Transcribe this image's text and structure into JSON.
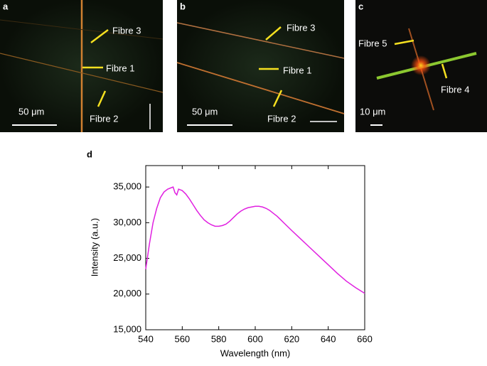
{
  "panels": [
    {
      "label": "a",
      "annotations": [
        "Fibre 3",
        "Fibre 1",
        "Fibre 2"
      ],
      "scale_bar": "50 μm"
    },
    {
      "label": "b",
      "annotations": [
        "Fibre 3",
        "Fibre 1",
        "Fibre 2"
      ],
      "scale_bar": "50 μm"
    },
    {
      "label": "c",
      "annotations": [
        "Fibre 5",
        "Fibre 4"
      ],
      "scale_bar": "10 μm"
    }
  ],
  "chart_data": {
    "type": "line",
    "panel_label": "d",
    "x_label": "Wavelength (nm)",
    "y_label": "Intensity (a.u.)",
    "color": "#e020e0",
    "x": [
      540,
      542,
      544,
      546,
      548,
      550,
      552,
      554,
      555,
      556,
      557,
      558,
      560,
      562,
      564,
      566,
      568,
      570,
      572,
      574,
      576,
      578,
      580,
      582,
      584,
      586,
      588,
      590,
      592,
      594,
      596,
      598,
      600,
      602,
      604,
      606,
      608,
      610,
      612,
      614,
      616,
      620,
      625,
      630,
      635,
      640,
      645,
      650,
      655,
      660
    ],
    "values": [
      23500,
      27000,
      30000,
      32000,
      33500,
      34300,
      34700,
      34900,
      35000,
      34200,
      33900,
      34700,
      34500,
      34000,
      33300,
      32500,
      31700,
      31000,
      30400,
      30000,
      29700,
      29500,
      29500,
      29600,
      29800,
      30200,
      30700,
      31200,
      31600,
      31900,
      32100,
      32200,
      32300,
      32300,
      32200,
      32000,
      31700,
      31300,
      30900,
      30400,
      29900,
      28900,
      27700,
      26500,
      25300,
      24100,
      22900,
      21800,
      20900,
      20100
    ],
    "xlim": [
      540,
      660
    ],
    "xticks": [
      540,
      560,
      580,
      600,
      620,
      640,
      660
    ],
    "ylim": [
      15000,
      38000
    ],
    "yticks": [
      {
        "value": 15000,
        "label": "15,000"
      },
      {
        "value": 20000,
        "label": "20,000"
      },
      {
        "value": 25000,
        "label": "25,000"
      },
      {
        "value": 30000,
        "label": "30,000"
      },
      {
        "value": 35000,
        "label": "35,000"
      }
    ]
  }
}
